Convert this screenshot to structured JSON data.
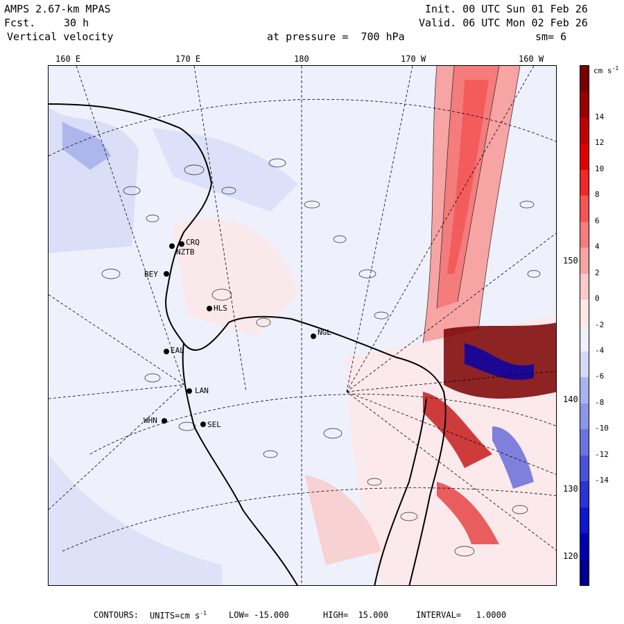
{
  "header": {
    "model": "AMPS 2.67-km MPAS",
    "fcst_label": "Fcst.",
    "fcst_value": "30 h",
    "field": "Vertical velocity",
    "init": "Init. 00 UTC Sun 01 Feb 26",
    "valid": "Valid. 06 UTC Mon 02 Feb 26",
    "pressure": "at pressure =  700 hPa",
    "smoothing": "sm= 6"
  },
  "lon_labels": [
    "160 E",
    "170 E",
    "180",
    "170 W",
    "160 W"
  ],
  "lat_labels": [
    "150 W",
    "140 W",
    "130 W",
    "120 W"
  ],
  "stations": [
    {
      "name": "CRQ"
    },
    {
      "name": "NZTB"
    },
    {
      "name": "BEY"
    },
    {
      "name": "HLS"
    },
    {
      "name": "NGL"
    },
    {
      "name": "EAL"
    },
    {
      "name": "LAN"
    },
    {
      "name": "WHN"
    },
    {
      "name": "SEL"
    }
  ],
  "colorbar": {
    "units": "cm s",
    "units_exp": "-1",
    "ticks": [
      "14",
      "12",
      "10",
      "8",
      "6",
      "4",
      "2",
      "0",
      "-2",
      "-4",
      "-6",
      "-8",
      "-10",
      "-12",
      "-14"
    ],
    "colors": [
      "#7a0000",
      "#9b0000",
      "#c00000",
      "#e00000",
      "#f02828",
      "#f45454",
      "#f47c7c",
      "#f7a4a4",
      "#fac9c9",
      "#fde7e7",
      "#eef0fb",
      "#d4d9f6",
      "#aab3ee",
      "#8b96e8",
      "#6b74dd",
      "#4a52d6",
      "#2b33d2",
      "#0f17cc",
      "#0000b0",
      "#000090"
    ]
  },
  "footer": {
    "contours_label": "CONTOURS:",
    "units_label": "UNITS=cm s",
    "units_exp": "-1",
    "low": "LOW= -15.000",
    "high": "HIGH=  15.000",
    "interval": "INTERVAL=   1.0000"
  }
}
